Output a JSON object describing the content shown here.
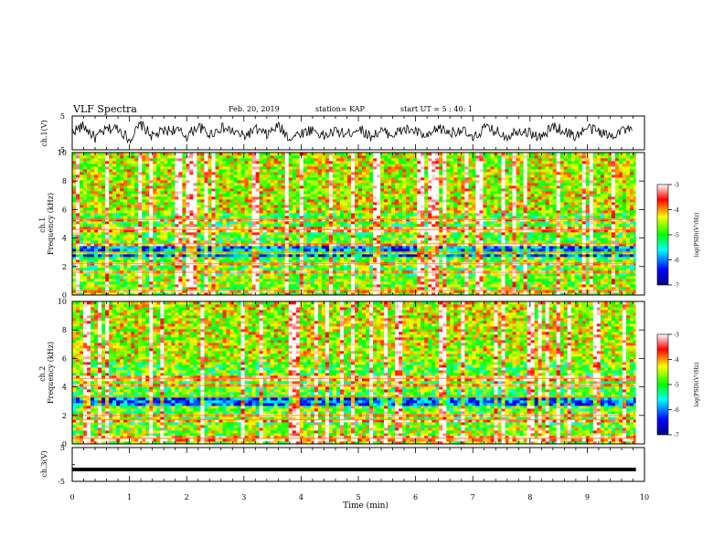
{
  "header": {
    "title": "VLF Spectra",
    "date": "Feb. 20, 2019",
    "station": "station= KAP",
    "start": "start  UT =  5 : 40: 1"
  },
  "chart_data": [
    {
      "type": "line",
      "name": "ch1-waveform",
      "ylabel": "ch.1(V)",
      "ylim": [
        -5,
        5
      ],
      "yticks": [
        "5",
        "-5"
      ],
      "xlim": [
        0,
        10
      ],
      "x": [
        0,
        0.2,
        0.4,
        0.6,
        0.8,
        1.0,
        1.2,
        1.4,
        1.6,
        1.8,
        2.0,
        2.2,
        2.4,
        2.6,
        2.8,
        3.0,
        3.2,
        3.4,
        3.6,
        3.8,
        4.0,
        4.2,
        4.4,
        4.6,
        4.8,
        5.0,
        5.2,
        5.4,
        5.6,
        5.8,
        6.0,
        6.2,
        6.4,
        6.6,
        6.8,
        7.0,
        7.2,
        7.4,
        7.6,
        7.8,
        8.0,
        8.2,
        8.4,
        8.6,
        8.8,
        9.0,
        9.2,
        9.4,
        9.6,
        9.8
      ],
      "values": [
        0.5,
        2.0,
        -1.5,
        1.0,
        1.5,
        -2.0,
        2.5,
        -1.0,
        0.5,
        1.0,
        -1.0,
        2.0,
        -0.5,
        1.5,
        0.5,
        -1.0,
        1.0,
        -0.5,
        2.0,
        -1.5,
        0.0,
        1.0,
        -1.0,
        0.5,
        -0.5,
        1.5,
        -1.0,
        0.5,
        -0.5,
        1.0,
        0.5,
        -1.5,
        1.5,
        0.0,
        1.0,
        -2.0,
        1.5,
        0.5,
        -1.0,
        1.0,
        0.0,
        -1.5,
        2.0,
        0.5,
        -1.0,
        1.5,
        0.5,
        -1.0,
        1.0,
        0.5
      ]
    },
    {
      "type": "heatmap",
      "name": "ch1-spectrogram",
      "ylabel": "ch.1\nFrequency (kHz)",
      "ylim": [
        0,
        10
      ],
      "yticks": [
        "0",
        "2",
        "4",
        "6",
        "8",
        "10"
      ],
      "xlim": [
        0,
        10
      ],
      "colorbar": {
        "label": "log(PSD)(V²/Hz)",
        "range": [
          -7,
          -3
        ],
        "ticks": [
          "-3",
          "-4",
          "-5",
          "-6",
          "-7"
        ]
      },
      "bright_lines_khz": [
        0.3,
        1.6,
        2.2,
        3.0,
        3.6,
        4.6,
        5.3
      ]
    },
    {
      "type": "heatmap",
      "name": "ch2-spectrogram",
      "ylabel": "ch.2\nFrequency (kHz)",
      "ylim": [
        0,
        10
      ],
      "yticks": [
        "0",
        "2",
        "4",
        "6",
        "8",
        "10"
      ],
      "xlim": [
        0,
        10
      ],
      "colorbar": {
        "label": "log(PSD)(V²/Hz)",
        "range": [
          -7,
          -3
        ],
        "ticks": [
          "-3",
          "-4",
          "-5",
          "-6",
          "-7"
        ]
      },
      "bright_lines_khz": [
        0.4,
        1.7,
        2.0,
        3.3,
        4.1,
        4.6
      ]
    },
    {
      "type": "line",
      "name": "ch3-waveform",
      "ylabel": "ch.3(V)",
      "ylim": [
        -5,
        5
      ],
      "yticks": [
        "5",
        "-5"
      ],
      "xlim": [
        0,
        10
      ],
      "x": [
        0,
        9.85
      ],
      "values": [
        -1.5,
        -1.5
      ]
    }
  ],
  "xaxis": {
    "label": "Time (min)",
    "ticks": [
      "0",
      "1",
      "2",
      "3",
      "4",
      "5",
      "6",
      "7",
      "8",
      "9",
      "10"
    ]
  }
}
